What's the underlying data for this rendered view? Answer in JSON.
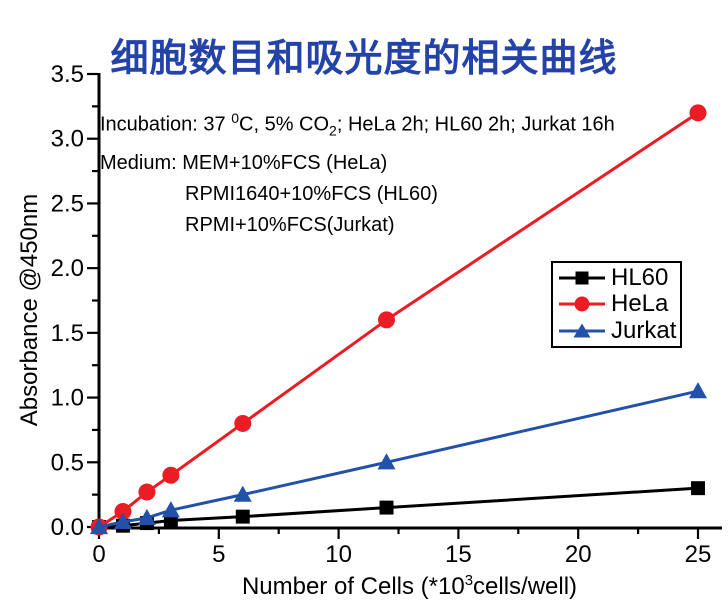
{
  "title": "细胞数目和吸光度的相关曲线",
  "title_color": "#2343a8",
  "annotations": {
    "line1_pre": "Incubation: 37 ",
    "line1_sup": "0",
    "line1_mid": "C, 5% CO",
    "line1_sub": "2",
    "line1_post": "; HeLa 2h; HL60 2h; Jurkat 16h",
    "line2": "Medium: MEM+10%FCS (HeLa)",
    "line3": "RPMI1640+10%FCS (HL60)",
    "line4": "RPMI+10%FCS(Jurkat)"
  },
  "axes": {
    "ylabel": "Absorbance  @450nm",
    "xlabel_pre": "Number of Cells (*10",
    "xlabel_sup": "3",
    "xlabel_post": "cells/well)",
    "x_tick_labels": [
      "0",
      "5",
      "10",
      "15",
      "20",
      "25"
    ],
    "y_tick_labels": [
      "0.0",
      "0.5",
      "1.0",
      "1.5",
      "2.0",
      "2.5",
      "3.0",
      "3.5"
    ]
  },
  "chart_data": {
    "type": "line",
    "title": "细胞数目和吸光度的相关曲线",
    "xlabel": "Number of Cells (*10^3 cells/well)",
    "ylabel": "Absorbance @450nm",
    "xlim": [
      0,
      25
    ],
    "ylim": [
      0,
      3.5
    ],
    "x_major_step": 5,
    "x_minor_step": 2.5,
    "y_major_step": 0.5,
    "y_minor_step": 0.25,
    "grid": false,
    "legend_position": "center-right",
    "x": [
      0,
      1,
      2,
      3,
      6,
      12,
      25
    ],
    "series": [
      {
        "name": "HL60",
        "marker": "square",
        "color": "#000000",
        "values": [
          0,
          0.01,
          0.03,
          0.05,
          0.08,
          0.15,
          0.3
        ]
      },
      {
        "name": "HeLa",
        "marker": "circle",
        "color": "#ec1c24",
        "values": [
          0,
          0.12,
          0.27,
          0.4,
          0.8,
          1.6,
          3.2
        ]
      },
      {
        "name": "Jurkat",
        "marker": "triangle",
        "color": "#2151a8",
        "values": [
          0,
          0.04,
          0.07,
          0.13,
          0.25,
          0.5,
          1.05
        ]
      }
    ]
  }
}
